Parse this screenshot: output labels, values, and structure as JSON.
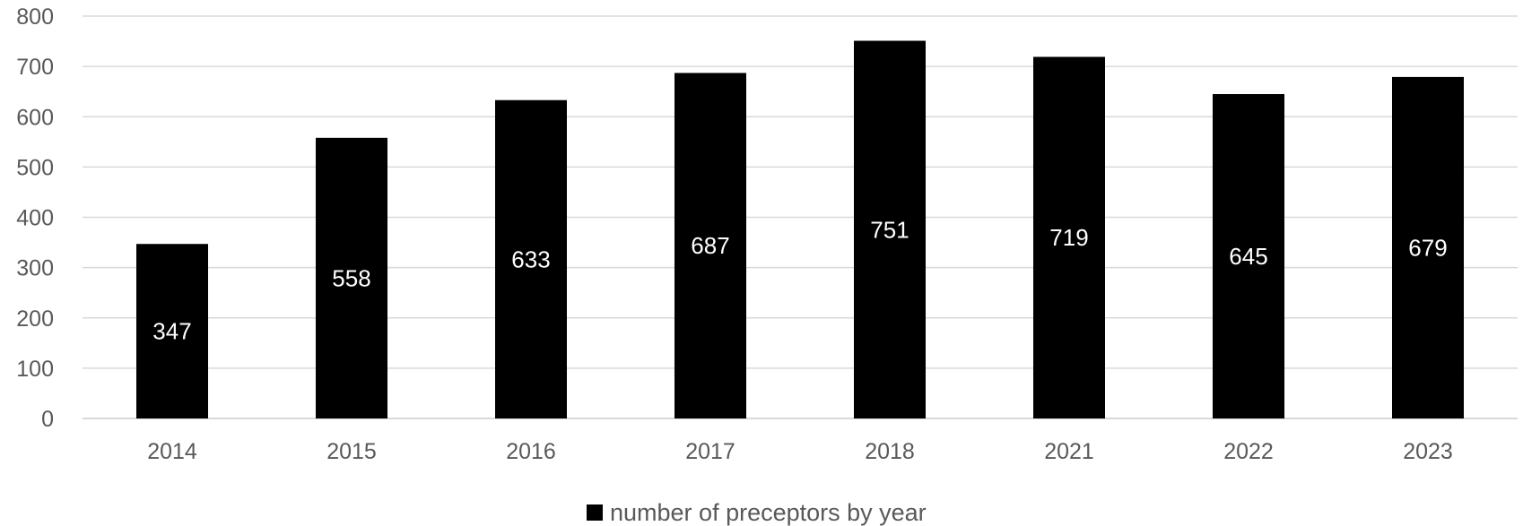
{
  "chart_data": {
    "type": "bar",
    "categories": [
      "2014",
      "2015",
      "2016",
      "2017",
      "2018",
      "2021",
      "2022",
      "2023"
    ],
    "series": [
      {
        "name": "number of preceptors by year",
        "values": [
          347,
          558,
          633,
          687,
          751,
          719,
          645,
          679
        ],
        "color": "#000000"
      }
    ],
    "ylim": [
      0,
      800
    ],
    "yticks": [
      0,
      100,
      200,
      300,
      400,
      500,
      600,
      700,
      800
    ],
    "grid": true,
    "legend": "bottom-center",
    "data_labels": "inside",
    "colors": {
      "bar": "#000000",
      "gridline": "#d9d9d9",
      "tick_text": "#595959",
      "data_label_text": "#ffffff"
    }
  }
}
